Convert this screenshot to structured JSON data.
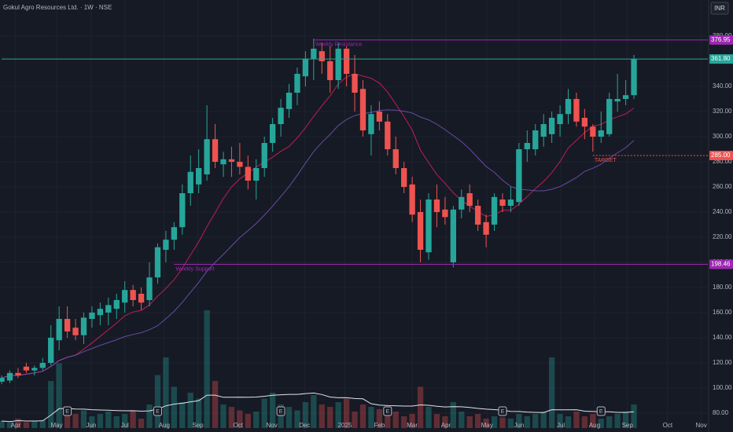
{
  "chart_data": {
    "type": "candlestick",
    "title": "Gokul Agro Resources Ltd. · 1W · NSE",
    "currency": "INR",
    "up_color": "#26a69a",
    "down_color": "#ef5350",
    "open": [
      105,
      106,
      112,
      117,
      114,
      116,
      120,
      138,
      155,
      148,
      142,
      155,
      158,
      160,
      163,
      168,
      178,
      175,
      170,
      188,
      210,
      218,
      228,
      255,
      262,
      270,
      298,
      278,
      282,
      280,
      276,
      265,
      275,
      295,
      310,
      322,
      335,
      348,
      362,
      368,
      360,
      345,
      370,
      350,
      338,
      302,
      320,
      312,
      290,
      275,
      262,
      240,
      208,
      250,
      242,
      200,
      242,
      255,
      245,
      232,
      230,
      250,
      245,
      248,
      290,
      290,
      300,
      302,
      310,
      318,
      330,
      315,
      308,
      300,
      302,
      328,
      330,
      333
    ],
    "high": [
      110,
      114,
      116,
      120,
      118,
      124,
      150,
      165,
      165,
      155,
      160,
      165,
      168,
      172,
      175,
      185,
      182,
      180,
      200,
      215,
      225,
      232,
      262,
      285,
      290,
      325,
      310,
      288,
      292,
      295,
      285,
      282,
      300,
      315,
      330,
      342,
      355,
      368,
      378,
      375,
      372,
      375,
      372,
      365,
      345,
      325,
      328,
      318,
      300,
      280,
      268,
      250,
      255,
      262,
      252,
      245,
      258,
      262,
      250,
      238,
      255,
      255,
      260,
      295,
      305,
      310,
      318,
      320,
      325,
      338,
      335,
      322,
      310,
      320,
      335,
      350,
      345,
      365
    ],
    "low": [
      103,
      104,
      108,
      112,
      110,
      114,
      118,
      130,
      140,
      138,
      135,
      148,
      150,
      150,
      155,
      160,
      165,
      162,
      165,
      183,
      200,
      210,
      222,
      245,
      255,
      265,
      275,
      268,
      268,
      270,
      258,
      250,
      268,
      288,
      300,
      315,
      325,
      340,
      345,
      350,
      335,
      338,
      340,
      320,
      300,
      285,
      305,
      285,
      270,
      255,
      232,
      200,
      202,
      228,
      230,
      196,
      235,
      240,
      225,
      212,
      225,
      240,
      240,
      245,
      280,
      285,
      292,
      295,
      300,
      310,
      308,
      298,
      288,
      295,
      300,
      320,
      325,
      330
    ],
    "close": [
      108,
      112,
      110,
      114,
      116,
      120,
      140,
      155,
      145,
      142,
      156,
      160,
      163,
      166,
      170,
      178,
      170,
      168,
      188,
      212,
      218,
      228,
      255,
      272,
      275,
      298,
      280,
      282,
      280,
      276,
      265,
      275,
      295,
      310,
      323,
      335,
      350,
      362,
      370,
      360,
      345,
      370,
      350,
      335,
      305,
      318,
      312,
      290,
      275,
      260,
      238,
      210,
      250,
      240,
      236,
      242,
      252,
      245,
      230,
      222,
      252,
      245,
      250,
      290,
      295,
      305,
      310,
      315,
      318,
      330,
      312,
      308,
      300,
      305,
      330,
      330,
      333,
      361.8
    ],
    "volume": [
      6,
      5,
      8,
      5,
      6,
      7,
      40,
      55,
      18,
      12,
      15,
      10,
      12,
      14,
      10,
      12,
      15,
      8,
      20,
      45,
      60,
      35,
      22,
      30,
      25,
      100,
      40,
      20,
      18,
      15,
      12,
      14,
      25,
      30,
      20,
      18,
      15,
      22,
      28,
      20,
      18,
      22,
      25,
      14,
      20,
      18,
      16,
      12,
      14,
      10,
      12,
      35,
      18,
      12,
      10,
      22,
      14,
      10,
      12,
      8,
      10,
      9,
      8,
      12,
      10,
      12,
      14,
      60,
      12,
      10,
      14,
      10,
      12,
      8,
      10,
      12,
      14,
      20
    ],
    "volume_lim": [
      0,
      100
    ],
    "events": {
      "label": "E",
      "x": [
        8,
        19,
        34,
        47,
        61,
        73
      ]
    },
    "xlim": [
      -0.2,
      86
    ],
    "xticks": [
      {
        "value": 1.7,
        "label": "Apr"
      },
      {
        "value": 6.7,
        "label": "May"
      },
      {
        "value": 10.9,
        "label": "Jun"
      },
      {
        "value": 15.0,
        "label": "Jul"
      },
      {
        "value": 19.8,
        "label": "Aug"
      },
      {
        "value": 23.9,
        "label": "Sep"
      },
      {
        "value": 28.8,
        "label": "Oct"
      },
      {
        "value": 32.9,
        "label": "Nov"
      },
      {
        "value": 36.9,
        "label": "Dec"
      },
      {
        "value": 41.8,
        "label": "2025"
      },
      {
        "value": 46.0,
        "label": "Feb"
      },
      {
        "value": 50.0,
        "label": "Mar"
      },
      {
        "value": 54.1,
        "label": "Apr"
      },
      {
        "value": 59.1,
        "label": "May"
      },
      {
        "value": 63.0,
        "label": "Jun"
      },
      {
        "value": 68.1,
        "label": "Jul"
      },
      {
        "value": 72.2,
        "label": "Aug"
      },
      {
        "value": 76.2,
        "label": "Sep"
      },
      {
        "value": 81.1,
        "label": "Oct"
      },
      {
        "value": 85.2,
        "label": "Nov"
      }
    ],
    "ylim": [
      65,
      392.5
    ],
    "yticks": [
      {
        "value": 80,
        "label": "80.00"
      },
      {
        "value": 100,
        "label": "100.00"
      },
      {
        "value": 120,
        "label": "120.00"
      },
      {
        "value": 140,
        "label": "140.00"
      },
      {
        "value": 160,
        "label": "160.00"
      },
      {
        "value": 180,
        "label": "180.00"
      },
      {
        "value": 200,
        "label": "200.00"
      },
      {
        "value": 220,
        "label": "220.00"
      },
      {
        "value": 240,
        "label": "240.00"
      },
      {
        "value": 260,
        "label": "260.00"
      },
      {
        "value": 280,
        "label": "280.00"
      },
      {
        "value": 300,
        "label": "300.00"
      },
      {
        "value": 320,
        "label": "320.00"
      },
      {
        "value": 340,
        "label": "340.00"
      },
      {
        "value": 380,
        "label": "380.00"
      }
    ],
    "grid": true,
    "levels": [
      {
        "value": 376.95,
        "label": "376.95",
        "text": "Weekly Resistance",
        "color": "#9c27b0",
        "start": 38
      },
      {
        "value": 361.8,
        "label": "361.80",
        "color": "#26a69a",
        "start": 0
      },
      {
        "value": 285,
        "label": "285.00",
        "text": "TARGET",
        "color": "#ef5350",
        "start": 72,
        "dashed": true
      },
      {
        "value": 198.46,
        "label": "198.46",
        "text": "Weekly Support",
        "color": "#9c27b0",
        "start": 21
      }
    ]
  }
}
